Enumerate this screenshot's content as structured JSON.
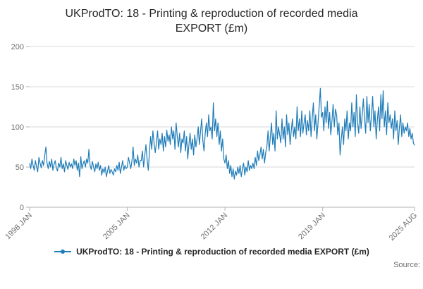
{
  "header": {
    "title": "UKProdTO: 18 - Printing & reproduction of recorded media EXPORT (£m)"
  },
  "legend": {
    "label": "UKProdTO: 18 - Printing & reproduction of recorded media EXPORT (£m)"
  },
  "footer": {
    "source_label": "Source:"
  },
  "chart_data": {
    "type": "line",
    "title": "UKProdTO: 18 - Printing & reproduction of recorded media EXPORT (£m)",
    "xlabel": "",
    "ylabel": "",
    "x_start": "1998 JAN",
    "x_end": "2025 AUG",
    "frequency": "monthly",
    "ylim": [
      0,
      200
    ],
    "y_ticks": [
      0,
      50,
      100,
      150,
      200
    ],
    "x_ticks": [
      {
        "label": "1998 JAN",
        "index": 0
      },
      {
        "label": "2005 JAN",
        "index": 84
      },
      {
        "label": "2012 JAN",
        "index": 168
      },
      {
        "label": "2019 JAN",
        "index": 252
      },
      {
        "label": "2025 AUG",
        "index": 331
      }
    ],
    "series_name": "UKProdTO: 18 - Printing & reproduction of recorded media EXPORT (£m)",
    "values": [
      55,
      48,
      60,
      52,
      46,
      58,
      50,
      44,
      62,
      55,
      49,
      58,
      52,
      64,
      75,
      55,
      48,
      57,
      50,
      60,
      46,
      53,
      58,
      49,
      45,
      55,
      50,
      62,
      48,
      54,
      44,
      58,
      52,
      47,
      56,
      50,
      54,
      48,
      60,
      52,
      58,
      46,
      55,
      38,
      63,
      48,
      54,
      58,
      50,
      60,
      55,
      72,
      52,
      47,
      57,
      50,
      44,
      54,
      48,
      56,
      46,
      52,
      40,
      48,
      43,
      50,
      38,
      45,
      52,
      42,
      47,
      44,
      40,
      48,
      44,
      52,
      46,
      56,
      42,
      50,
      58,
      46,
      52,
      48,
      50,
      62,
      55,
      48,
      58,
      75,
      52,
      60,
      55,
      65,
      50,
      58,
      58,
      70,
      50,
      64,
      78,
      60,
      46,
      68,
      88,
      72,
      95,
      80,
      68,
      80,
      95,
      72,
      85,
      78,
      92,
      70,
      88,
      75,
      96,
      82,
      90,
      78,
      100,
      85,
      95,
      72,
      105,
      88,
      75,
      92,
      68,
      85,
      80,
      95,
      70,
      88,
      60,
      78,
      92,
      72,
      85,
      65,
      90,
      75,
      85,
      100,
      78,
      95,
      110,
      82,
      70,
      92,
      105,
      88,
      115,
      95,
      100,
      85,
      130,
      95,
      110,
      88,
      105,
      78,
      95,
      70,
      85,
      60,
      55,
      65,
      48,
      58,
      42,
      52,
      38,
      48,
      35,
      45,
      40,
      50,
      42,
      52,
      38,
      48,
      55,
      40,
      50,
      44,
      58,
      46,
      52,
      48,
      55,
      48,
      62,
      52,
      70,
      58,
      65,
      75,
      60,
      72,
      55,
      68,
      75,
      95,
      70,
      88,
      105,
      78,
      92,
      70,
      120,
      85,
      100,
      90,
      80,
      110,
      85,
      100,
      75,
      115,
      90,
      105,
      78,
      95,
      110,
      88,
      100,
      85,
      125,
      95,
      110,
      88,
      120,
      92,
      105,
      115,
      90,
      108,
      95,
      120,
      88,
      110,
      130,
      95,
      115,
      85,
      105,
      125,
      148,
      112,
      118,
      95,
      125,
      105,
      132,
      98,
      118,
      90,
      108,
      128,
      100,
      122,
      115,
      90,
      105,
      65,
      85,
      100,
      78,
      110,
      95,
      120,
      85,
      105,
      95,
      130,
      100,
      118,
      88,
      140,
      105,
      92,
      125,
      98,
      115,
      135,
      110,
      92,
      138,
      105,
      128,
      95,
      115,
      138,
      100,
      120,
      85,
      108,
      125,
      95,
      140,
      110,
      145,
      100,
      120,
      90,
      130,
      105,
      115,
      98,
      110,
      85,
      120,
      95,
      108,
      78,
      100,
      115,
      88,
      105,
      92,
      100,
      95,
      105,
      88,
      98,
      85,
      92,
      80,
      77
    ],
    "grid": "horizontal",
    "legend_position": "bottom",
    "line_color": "#1e7cb8",
    "grid_color": "#d9d9d9",
    "axis_color": "#b3b3b3"
  }
}
